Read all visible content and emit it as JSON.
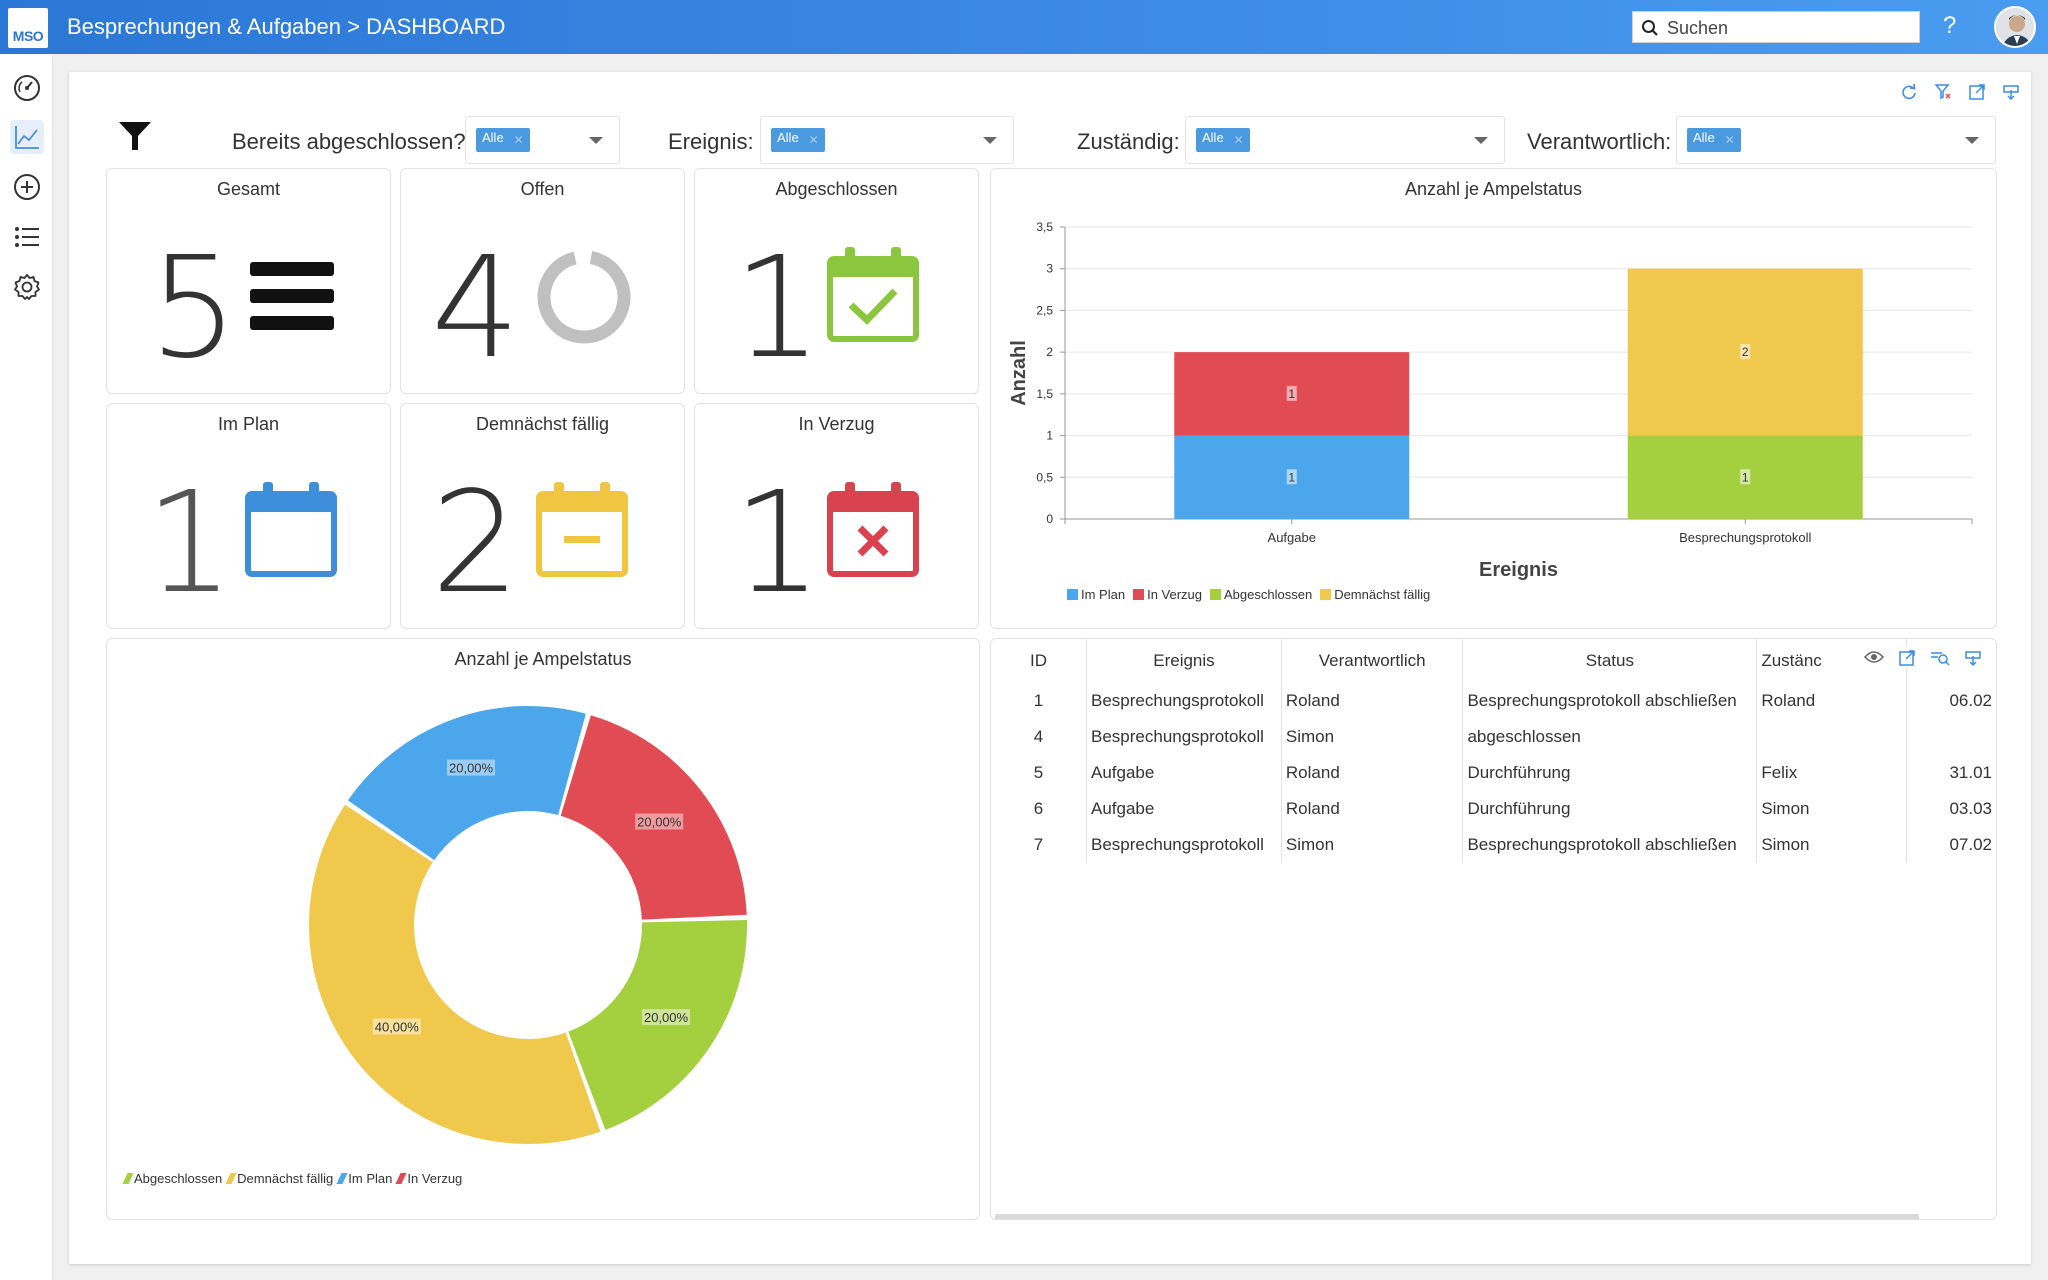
{
  "app": {
    "logo": "MSO",
    "title": "Besprechungen & Aufgaben > DASHBOARD",
    "help": "?"
  },
  "search": {
    "placeholder": "Suchen"
  },
  "filters": {
    "bereits": {
      "label": "Bereits abgeschlossen?",
      "value": "Alle"
    },
    "ereignis": {
      "label": "Ereignis:",
      "value": "Alle"
    },
    "zustaendig": {
      "label": "Zuständig:",
      "value": "Alle"
    },
    "verantwortlich": {
      "label": "Verantwortlich:",
      "value": "Alle"
    }
  },
  "kpis": [
    {
      "title": "Gesamt",
      "value": "5",
      "icon": "list-icon",
      "color": "#111111"
    },
    {
      "title": "Offen",
      "value": "4",
      "icon": "ring-icon",
      "color": "#c0c0c0"
    },
    {
      "title": "Abgeschlossen",
      "value": "1",
      "icon": "calendar-check-icon",
      "color": "#8cc63f"
    },
    {
      "title": "Im Plan",
      "value": "1",
      "icon": "calendar-icon",
      "color": "#3d8fdc"
    },
    {
      "title": "Demnächst fällig",
      "value": "2",
      "icon": "calendar-minus-icon",
      "color": "#f0c640"
    },
    {
      "title": "In Verzug",
      "value": "1",
      "icon": "calendar-x-icon",
      "color": "#d9434f"
    }
  ],
  "colors": {
    "im_plan": "#4ca6ec",
    "in_verzug": "#e14b53",
    "abgeschlossen": "#a4cf3f",
    "demnaechst": "#f0c84c"
  },
  "chart_data": [
    {
      "type": "bar",
      "stacked": true,
      "title": "Anzahl je Ampelstatus",
      "xlabel": "Ereignis",
      "ylabel": "Anzahl",
      "categories": [
        "Aufgabe",
        "Besprechungsprotokoll"
      ],
      "ylim": [
        0,
        3.5
      ],
      "yticks": [
        "0",
        "0,5",
        "1",
        "1,5",
        "2",
        "2,5",
        "3",
        "3,5"
      ],
      "series": [
        {
          "name": "Im Plan",
          "values": [
            1,
            0
          ],
          "color": "#4ca6ec"
        },
        {
          "name": "In Verzug",
          "values": [
            1,
            0
          ],
          "color": "#e14b53"
        },
        {
          "name": "Abgeschlossen",
          "values": [
            0,
            1
          ],
          "color": "#a4cf3f"
        },
        {
          "name": "Demnächst fällig",
          "values": [
            0,
            2
          ],
          "color": "#f0c84c"
        }
      ],
      "legend": "bottom-left",
      "grid": true
    },
    {
      "type": "pie",
      "donut": true,
      "title": "Anzahl je Ampelstatus",
      "slices": [
        {
          "name": "Im Plan",
          "value": 20,
          "label": "20,00%",
          "color": "#4ca6ec"
        },
        {
          "name": "In Verzug",
          "value": 20,
          "label": "20,00%",
          "color": "#e14b53"
        },
        {
          "name": "Abgeschlossen",
          "value": 20,
          "label": "20,00%",
          "color": "#a4cf3f"
        },
        {
          "name": "Demnächst fällig",
          "value": 40,
          "label": "40,00%",
          "color": "#f0c84c"
        }
      ],
      "legend_order": [
        "Abgeschlossen",
        "Demnächst fällig",
        "Im Plan",
        "In Verzug"
      ],
      "legend": "bottom-left"
    }
  ],
  "table": {
    "columns": [
      "ID",
      "Ereignis",
      "Verantwortlich",
      "Status",
      "Zustänc",
      ""
    ],
    "rows": [
      [
        "1",
        "Besprechungsprotokoll",
        "Roland",
        "Besprechungsprotokoll abschließen",
        "Roland",
        "06.02"
      ],
      [
        "4",
        "Besprechungsprotokoll",
        "Simon",
        "abgeschlossen",
        "",
        ""
      ],
      [
        "5",
        "Aufgabe",
        "Roland",
        "Durchführung",
        "Felix",
        "31.01"
      ],
      [
        "6",
        "Aufgabe",
        "Roland",
        "Durchführung",
        "Simon",
        "03.03"
      ],
      [
        "7",
        "Besprechungsprotokoll",
        "Simon",
        "Besprechungsprotokoll abschließen",
        "Simon",
        "07.02"
      ]
    ]
  }
}
